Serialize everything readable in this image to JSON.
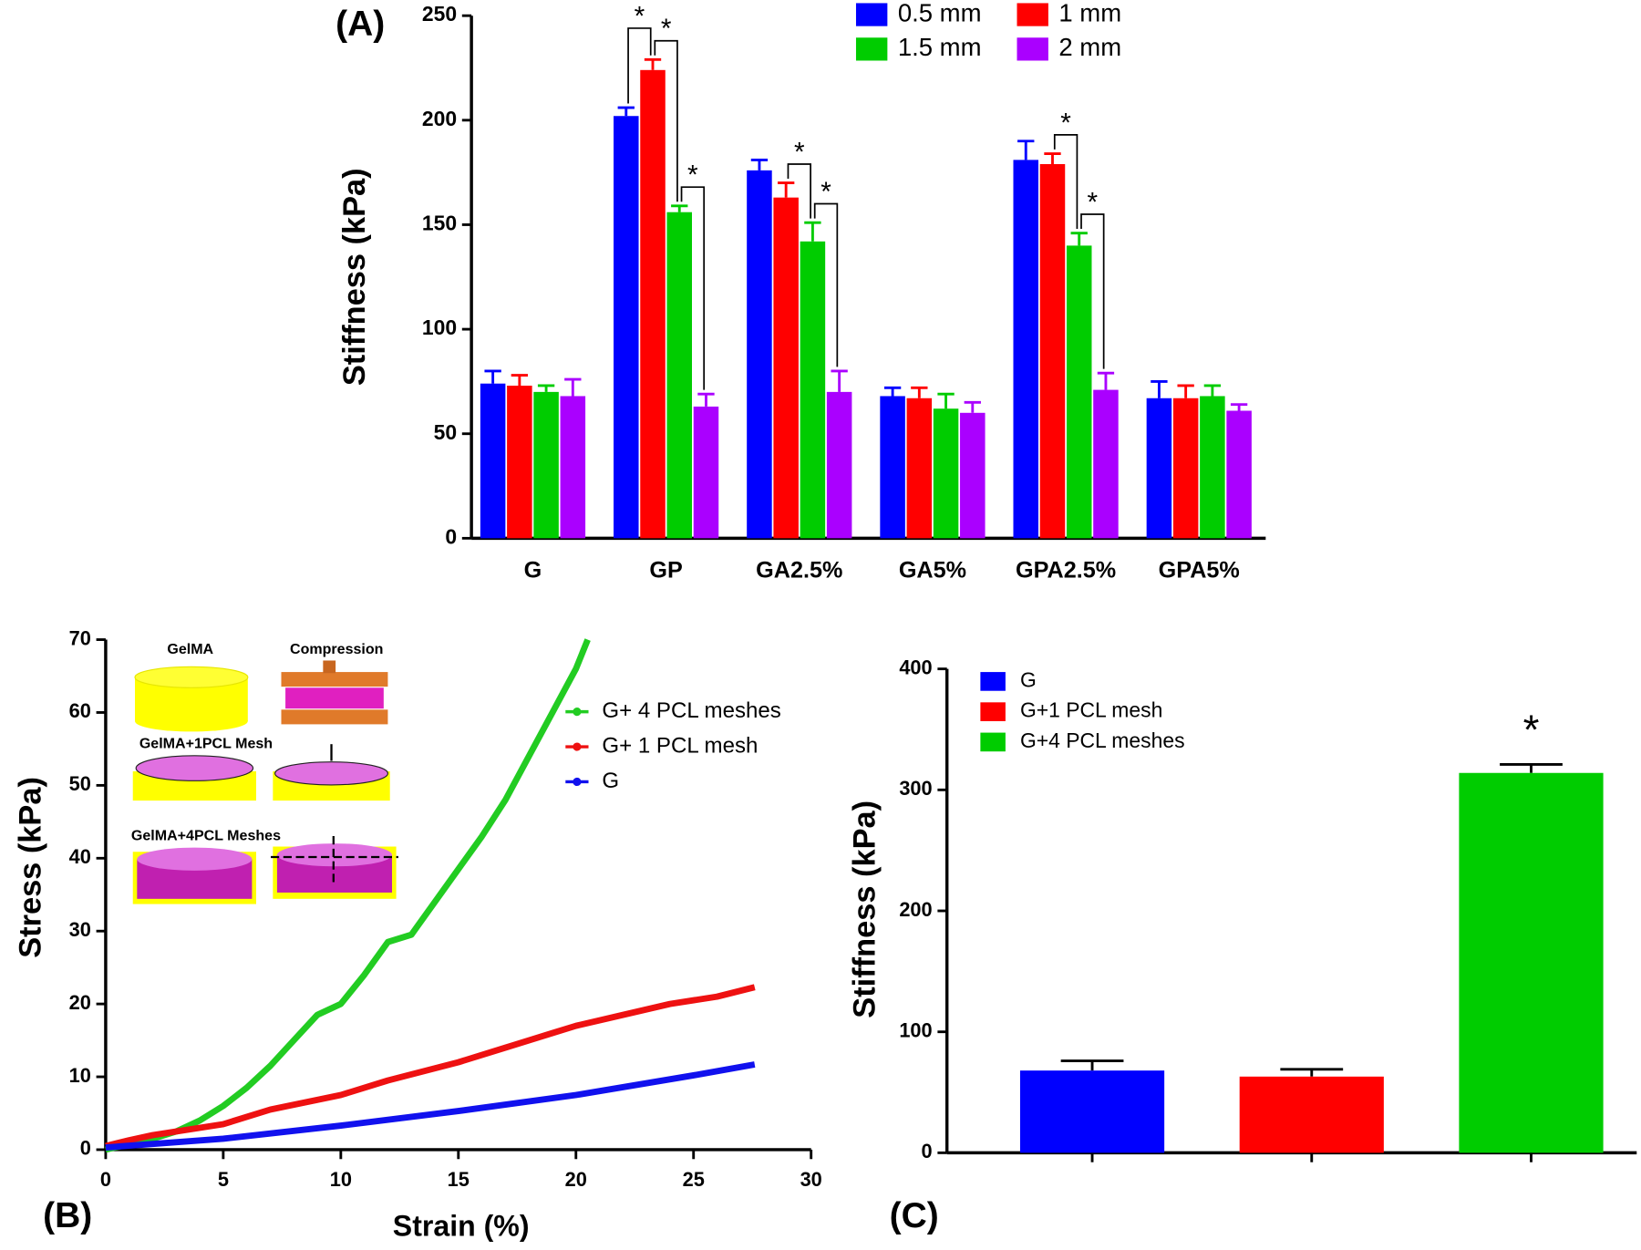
{
  "chart_data": [
    {
      "type": "bar",
      "label": "(A)",
      "ylabel": "Stiffness (kPa)",
      "categories": [
        "G",
        "GP",
        "GA2.5%",
        "GA5%",
        "GPA2.5%",
        "GPA5%"
      ],
      "series": [
        {
          "name": "0.5 mm",
          "color": "#0000ff",
          "values": [
            74,
            202,
            176,
            68,
            181,
            67
          ],
          "errors": [
            6,
            4,
            5,
            4,
            9,
            8
          ]
        },
        {
          "name": "1 mm",
          "color": "#ff0000",
          "values": [
            73,
            224,
            163,
            67,
            179,
            67
          ],
          "errors": [
            5,
            5,
            7,
            5,
            5,
            6
          ]
        },
        {
          "name": "1.5 mm",
          "color": "#00cc00",
          "values": [
            70,
            156,
            142,
            62,
            140,
            68
          ],
          "errors": [
            3,
            3,
            9,
            7,
            6,
            5
          ]
        },
        {
          "name": "2 mm",
          "color": "#aa00ff",
          "values": [
            68,
            63,
            70,
            60,
            71,
            61
          ],
          "errors": [
            8,
            6,
            10,
            5,
            8,
            3
          ]
        }
      ],
      "significance": [
        {
          "category": 1,
          "series": [
            0,
            1
          ],
          "label": "*"
        },
        {
          "category": 1,
          "series": [
            1,
            2
          ],
          "label": "*"
        },
        {
          "category": 1,
          "series": [
            2,
            3
          ],
          "label": "*"
        },
        {
          "category": 2,
          "series": [
            1,
            2
          ],
          "label": "*"
        },
        {
          "category": 2,
          "series": [
            2,
            3
          ],
          "label": "*"
        },
        {
          "category": 4,
          "series": [
            1,
            2
          ],
          "label": "*"
        },
        {
          "category": 4,
          "series": [
            2,
            3
          ],
          "label": "*"
        }
      ],
      "ylim": [
        0,
        250
      ],
      "yticks": [
        0,
        50,
        100,
        150,
        200,
        250
      ]
    },
    {
      "type": "line",
      "label": "(B)",
      "xlabel": "Strain (%)",
      "ylabel": "Stress (kPa)",
      "inset_labels": [
        "GelMA",
        "Compression",
        "GelMA+1PCL Mesh",
        "GelMA+4PCL Meshes"
      ],
      "series": [
        {
          "name": "G+ 4 PCL meshes",
          "color": "#22cc22",
          "x": [
            0,
            2,
            3,
            4,
            5,
            6,
            7,
            8,
            9,
            10,
            11,
            12,
            13,
            14,
            15,
            16,
            17,
            18,
            19,
            20,
            20.5
          ],
          "values": [
            0,
            1.5,
            2.5,
            4,
            6,
            8.5,
            11.5,
            15,
            18.5,
            20,
            24,
            28.5,
            29.5,
            34,
            38.5,
            43,
            48,
            54,
            60,
            66,
            70
          ]
        },
        {
          "name": "G+ 1 PCL mesh",
          "color": "#ee1111",
          "x": [
            0,
            1,
            2,
            3,
            5,
            7,
            10,
            12,
            15,
            17,
            19,
            20,
            22,
            24,
            26,
            27.6
          ],
          "values": [
            0.5,
            1.3,
            2,
            2.5,
            3.5,
            5.5,
            7.5,
            9.5,
            12,
            14,
            16,
            17,
            18.5,
            20,
            21,
            22.3
          ]
        },
        {
          "name": "G",
          "color": "#1111ee",
          "x": [
            0,
            5,
            10,
            15,
            20,
            25,
            27.6
          ],
          "values": [
            0.3,
            1.5,
            3.3,
            5.3,
            7.5,
            10.2,
            11.7
          ]
        }
      ],
      "xlim": [
        0,
        30
      ],
      "xticks": [
        0,
        5,
        10,
        15,
        20,
        25,
        30
      ],
      "ylim": [
        0,
        70
      ],
      "yticks": [
        0,
        10,
        20,
        30,
        40,
        50,
        60,
        70
      ]
    },
    {
      "type": "bar",
      "label": "(C)",
      "ylabel": "Stiffness (kPa)",
      "categories": [
        "G",
        "G+1 PCL mesh",
        "G+4 PCL meshes"
      ],
      "colors": [
        "#0000ff",
        "#ff0000",
        "#00cc00"
      ],
      "values": [
        68,
        63,
        314
      ],
      "errors": [
        8,
        6,
        7
      ],
      "significance": [
        {
          "index": 2,
          "label": "*"
        }
      ],
      "ylim": [
        0,
        400
      ],
      "yticks": [
        0,
        100,
        200,
        300,
        400
      ]
    }
  ]
}
